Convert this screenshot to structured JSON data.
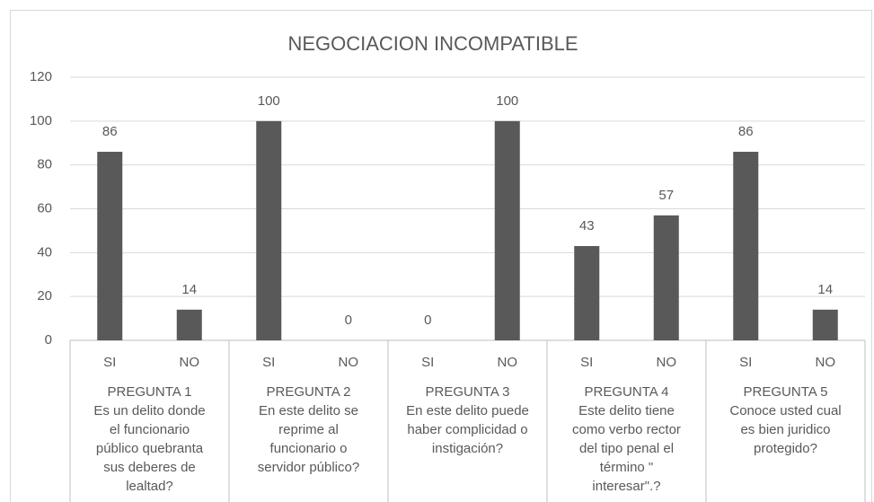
{
  "chart_data": {
    "type": "bar",
    "title": "NEGOCIACION INCOMPATIBLE",
    "categories": [
      "SI",
      "NO",
      "SI",
      "NO",
      "SI",
      "NO",
      "SI",
      "NO",
      "SI",
      "NO"
    ],
    "groups": [
      [
        "PREGUNTA 1",
        "Es un delito donde",
        "el funcionario",
        "público quebranta",
        "sus deberes de",
        "lealtad?"
      ],
      [
        "PREGUNTA 2",
        "En este delito se",
        "reprime al",
        "funcionario o",
        "servidor público?"
      ],
      [
        "PREGUNTA 3",
        "En este delito puede",
        "haber complicidad o",
        "instigación?"
      ],
      [
        "PREGUNTA 4",
        "Este delito tiene",
        "como verbo rector",
        "del tipo penal el",
        "término \"",
        "interesar\".?"
      ],
      [
        "PREGUNTA 5",
        "Conoce usted cual",
        "es bien juridico",
        "protegido?"
      ]
    ],
    "values": [
      86,
      14,
      100,
      0,
      0,
      100,
      43,
      57,
      86,
      14
    ],
    "color": "#595959",
    "ylim": [
      0,
      120
    ],
    "yticks": [
      0,
      20,
      40,
      60,
      80,
      100,
      120
    ],
    "grid": true
  }
}
